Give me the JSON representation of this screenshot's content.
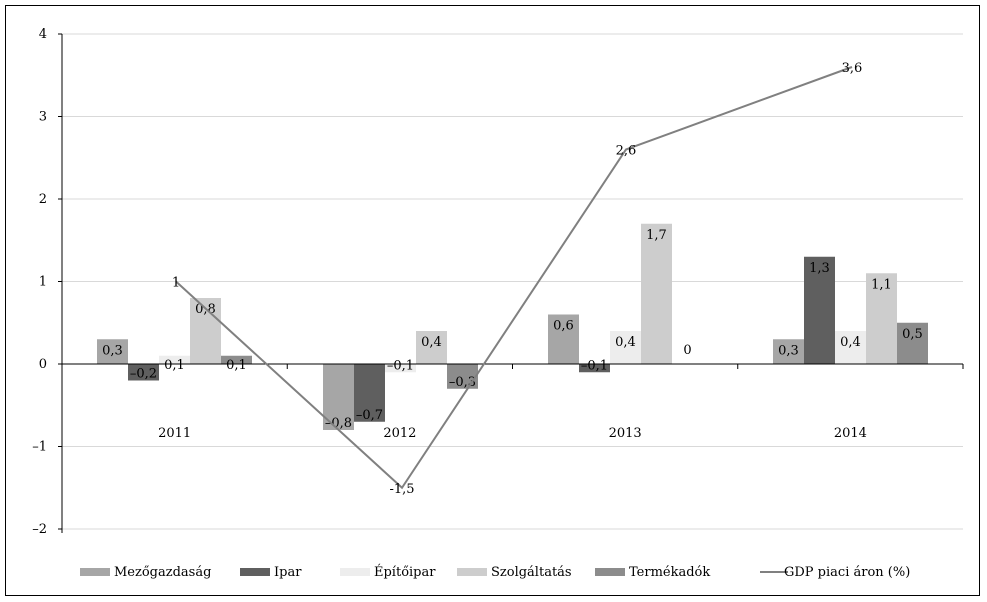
{
  "chart_data": {
    "type": "bar",
    "categories": [
      "2011",
      "2012",
      "2013",
      "2014"
    ],
    "series": [
      {
        "name": "Mezőgazdaság",
        "values": [
          0.3,
          -0.8,
          0.6,
          0.3
        ],
        "labels": [
          "0,3",
          "–0,8",
          "0,6",
          "0,3"
        ],
        "color": "#a6a6a6"
      },
      {
        "name": "Ipar",
        "values": [
          -0.2,
          -0.7,
          -0.1,
          1.3
        ],
        "labels": [
          "–0,2",
          "–0,7",
          "–0,1",
          "1,3"
        ],
        "color": "#5f5f5f"
      },
      {
        "name": "Építőipar",
        "values": [
          0.1,
          -0.1,
          0.4,
          0.4
        ],
        "labels": [
          "0,1",
          "–0,1",
          "0,4",
          "0,4"
        ],
        "color": "#ededed"
      },
      {
        "name": "Szolgáltatás",
        "values": [
          0.8,
          0.4,
          1.7,
          1.1
        ],
        "labels": [
          "0,8",
          "0,4",
          "1,7",
          "1,1"
        ],
        "color": "#cdcdcd"
      },
      {
        "name": "Termékadók",
        "values": [
          0.1,
          -0.3,
          0,
          0.5
        ],
        "labels": [
          "0,1",
          "–0,3",
          "0",
          "0,5"
        ],
        "color": "#8c8c8c"
      }
    ],
    "line_series": {
      "name": "GDP piaci áron (%)",
      "values": [
        1,
        -1.5,
        2.6,
        3.6
      ],
      "labels": [
        "1",
        "-1,5",
        "2,6",
        "3,6"
      ],
      "color": "#808080"
    },
    "ylim": [
      -2,
      4
    ],
    "yticks": [
      -2,
      -1,
      0,
      1,
      2,
      3,
      4
    ],
    "ytick_labels": [
      "–2",
      "–1",
      "0",
      "1",
      "2",
      "3",
      "4"
    ],
    "grid": true,
    "legend_position": "bottom"
  }
}
